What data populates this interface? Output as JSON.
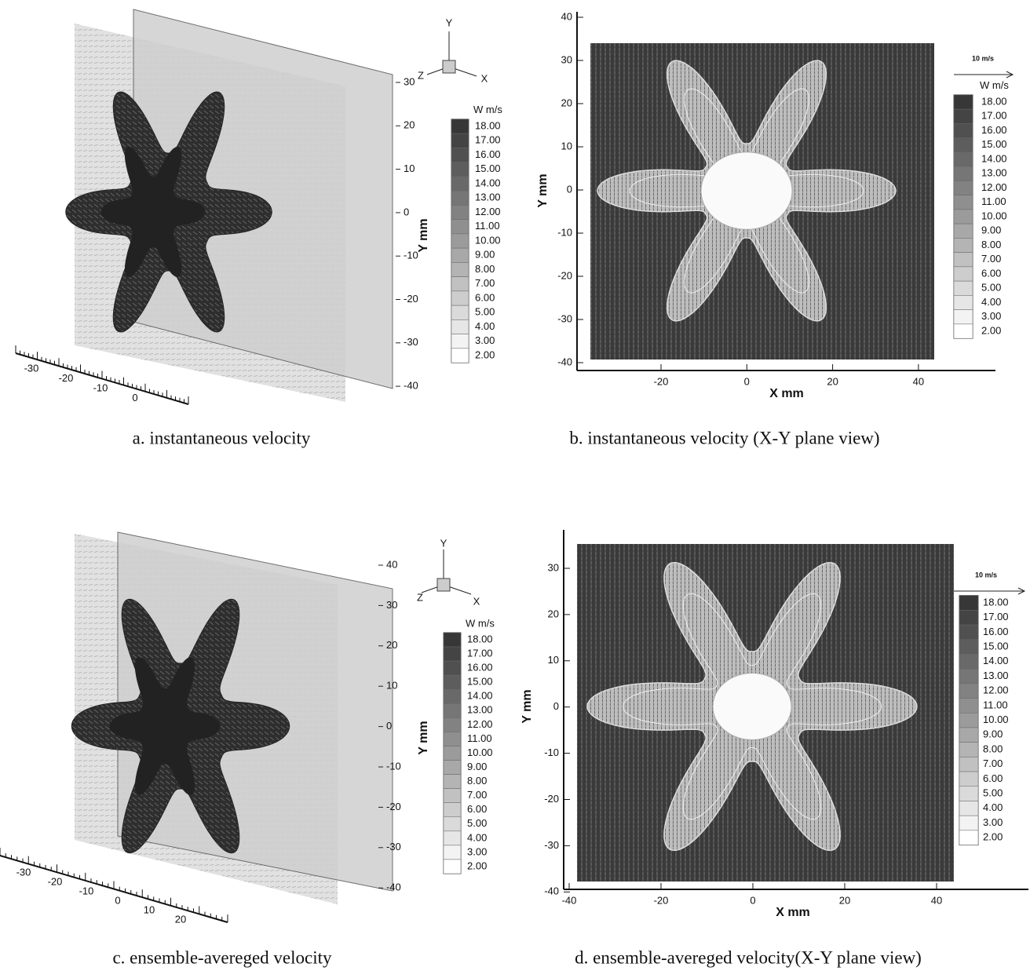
{
  "panels": {
    "a": {
      "caption": "a. instantaneous velocity",
      "y_label": "Y mm",
      "y_ticks": [
        "30",
        "20",
        "10",
        "0",
        "-10",
        "-20",
        "-30",
        "-40"
      ],
      "x_ticks": [
        "-30",
        "-20",
        "-10",
        "0"
      ],
      "legend_title": "W m/s",
      "legend": [
        "18.00",
        "17.00",
        "16.00",
        "15.00",
        "14.00",
        "13.00",
        "12.00",
        "11.00",
        "10.00",
        "9.00",
        "8.00",
        "7.00",
        "6.00",
        "5.00",
        "4.00",
        "3.00",
        "2.00"
      ],
      "axes_triad": [
        "Y",
        "Z",
        "X"
      ]
    },
    "b": {
      "caption": "b. instantaneous velocity (X-Y plane view)",
      "y_label": "Y mm",
      "x_label": "X mm",
      "y_ticks": [
        "40",
        "30",
        "20",
        "10",
        "0",
        "-10",
        "-20",
        "-30",
        "-40"
      ],
      "x_ticks": [
        "-20",
        "0",
        "20",
        "40"
      ],
      "scale_arrow": "10 m/s",
      "legend_title": "W m/s",
      "legend": [
        "18.00",
        "17.00",
        "16.00",
        "15.00",
        "14.00",
        "13.00",
        "12.00",
        "11.00",
        "10.00",
        "9.00",
        "8.00",
        "7.00",
        "6.00",
        "5.00",
        "4.00",
        "3.00",
        "2.00"
      ]
    },
    "c": {
      "caption": "c. ensemble-avereged velocity",
      "y_label": "Y mm",
      "y_ticks": [
        "40",
        "30",
        "20",
        "10",
        "0",
        "-10",
        "-20",
        "-30",
        "-40"
      ],
      "x_ticks": [
        "-30",
        "-20",
        "-10",
        "0",
        "10",
        "20"
      ],
      "legend_title": "W m/s",
      "legend": [
        "18.00",
        "17.00",
        "16.00",
        "15.00",
        "14.00",
        "13.00",
        "12.00",
        "11.00",
        "10.00",
        "9.00",
        "8.00",
        "7.00",
        "6.00",
        "5.00",
        "4.00",
        "3.00",
        "2.00"
      ],
      "axes_triad": [
        "Y",
        "Z",
        "X"
      ]
    },
    "d": {
      "caption": "d. ensemble-avereged velocity(X-Y plane view)",
      "y_label": "Y mm",
      "x_label": "X mm",
      "y_ticks": [
        "30",
        "20",
        "10",
        "0",
        "-10",
        "-20",
        "-30",
        "-40"
      ],
      "x_ticks": [
        "-40",
        "-20",
        "0",
        "20",
        "40"
      ],
      "scale_arrow": "10 m/s",
      "legend": [
        "18.00",
        "17.00",
        "16.00",
        "15.00",
        "14.00",
        "13.00",
        "12.00",
        "11.00",
        "10.00",
        "9.00",
        "8.00",
        "7.00",
        "6.00",
        "5.00",
        "4.00",
        "3.00",
        "2.00"
      ]
    }
  }
}
